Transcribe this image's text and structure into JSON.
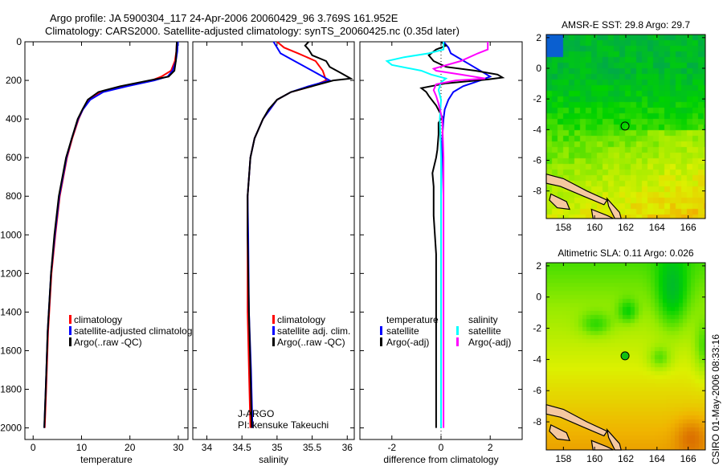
{
  "figure": {
    "title_line1": "Argo profile: JA 5900304_117 24-Apr-2006 20060429_96 3.769S 161.952E",
    "title_line2": "Climatology: CARS2000. Satellite-adjusted climatology: synTS_20060425.nc (0.35d later)",
    "pi_line1": "J-ARGO",
    "pi_line2": "PI: kensuke Takeuchi",
    "timestamp": "CSIRO 01-May-2006 08:33:16"
  },
  "colors": {
    "red": "#ff0000",
    "blue": "#0000ff",
    "black": "#000000",
    "cyan": "#00ffff",
    "magenta": "#ff00ff"
  },
  "chart_data": [
    {
      "type": "line",
      "id": "temperature",
      "xlabel": "temperature",
      "ylabel": "",
      "xlim": [
        -1.7,
        32
      ],
      "ylim": [
        2060,
        0
      ],
      "xticks": [
        "0",
        "10",
        "20",
        "30"
      ],
      "xtick_values": [
        0,
        10,
        20,
        30
      ],
      "yticks": [
        "0",
        "200",
        "400",
        "600",
        "800",
        "1000",
        "1200",
        "1400",
        "1600",
        "1800",
        "2000"
      ],
      "ytick_values": [
        0,
        200,
        400,
        600,
        800,
        1000,
        1200,
        1400,
        1600,
        1800,
        2000
      ],
      "legend": [
        "climatology",
        "satellite-adjusted climatology",
        "Argo(..raw -QC)"
      ],
      "series": [
        {
          "name": "climatology",
          "color": "#ff0000",
          "depth": [
            0,
            50,
            100,
            150,
            180,
            200,
            230,
            260,
            300,
            350,
            400,
            500,
            600,
            800,
            1000,
            1200,
            1500,
            1800,
            2000
          ],
          "values": [
            29.7,
            29.6,
            29.3,
            28.5,
            26.5,
            24.5,
            19,
            14,
            11.6,
            10.3,
            9.4,
            8.1,
            7,
            5.5,
            4.6,
            3.8,
            3.1,
            2.7,
            2.4
          ]
        },
        {
          "name": "satellite-adjusted climatology",
          "color": "#0000ff",
          "depth": [
            0,
            50,
            100,
            150,
            180,
            200,
            230,
            260,
            300,
            350,
            400,
            500,
            600,
            800,
            1000,
            1200,
            1500,
            1800,
            2000
          ],
          "values": [
            29.9,
            29.8,
            29.5,
            28.8,
            27.8,
            25,
            19.5,
            14.5,
            11.8,
            10.3,
            9.3,
            8,
            6.9,
            5.4,
            4.5,
            3.7,
            3,
            2.6,
            2.3
          ]
        },
        {
          "name": "Argo(..raw -QC)",
          "color": "#000000",
          "depth": [
            0,
            50,
            100,
            150,
            180,
            200,
            230,
            260,
            300,
            350,
            400,
            500,
            600,
            800,
            1000,
            1200,
            1500,
            1800,
            2000
          ],
          "values": [
            29.7,
            29.6,
            29.5,
            29.2,
            28,
            24,
            18,
            13.5,
            11.3,
            10.2,
            9.2,
            8,
            6.8,
            5.3,
            4.4,
            3.7,
            3,
            2.6,
            2.3
          ]
        }
      ]
    },
    {
      "type": "line",
      "id": "salinity",
      "xlabel": "salinity",
      "xlim": [
        33.8,
        36.1
      ],
      "ylim": [
        2060,
        0
      ],
      "xticks": [
        "34",
        "34.5",
        "35",
        "35.5",
        "36"
      ],
      "xtick_values": [
        34,
        34.5,
        35,
        35.5,
        36
      ],
      "legend": [
        "climatology",
        "satellite adj. clim.",
        "Argo(..raw -QC)"
      ],
      "series": [
        {
          "name": "climatology",
          "color": "#ff0000",
          "depth": [
            0,
            30,
            60,
            100,
            150,
            200,
            230,
            260,
            300,
            350,
            400,
            500,
            600,
            800,
            1000,
            1400,
            1700,
            2000
          ],
          "values": [
            35.0,
            35.1,
            35.3,
            35.55,
            35.65,
            35.7,
            35.5,
            35.2,
            35.0,
            34.9,
            34.8,
            34.68,
            34.62,
            34.58,
            34.58,
            34.58,
            34.6,
            34.62
          ]
        },
        {
          "name": "satellite adj. clim.",
          "color": "#0000ff",
          "depth": [
            0,
            30,
            60,
            100,
            150,
            200,
            230,
            260,
            300,
            350,
            400,
            500,
            600,
            800,
            1000,
            1400,
            1700,
            2000
          ],
          "values": [
            34.95,
            35.0,
            35.05,
            35.25,
            35.5,
            35.75,
            35.45,
            35.2,
            35.0,
            34.9,
            34.8,
            34.68,
            34.62,
            34.58,
            34.59,
            34.6,
            34.63,
            34.65
          ]
        },
        {
          "name": "Argo(..raw -QC)",
          "color": "#000000",
          "depth": [
            0,
            20,
            40,
            70,
            100,
            130,
            160,
            190,
            200,
            230,
            260,
            300,
            350,
            400,
            500,
            600,
            800,
            1000,
            1400,
            1700,
            2000
          ],
          "values": [
            35.45,
            35.4,
            35.45,
            35.5,
            35.7,
            35.75,
            35.9,
            36.05,
            35.8,
            35.5,
            35.2,
            35.0,
            34.88,
            34.8,
            34.68,
            34.62,
            34.58,
            34.58,
            34.6,
            34.62,
            34.64
          ]
        }
      ]
    },
    {
      "type": "line",
      "id": "difference",
      "xlabel": "difference from climatology",
      "xlim": [
        -3.3,
        3.3
      ],
      "ylim": [
        2060,
        0
      ],
      "xticks": [
        "-2",
        "0",
        "2"
      ],
      "xtick_values": [
        -2,
        0,
        2
      ],
      "legend_temperature_header": "temperature",
      "legend_salinity_header": "salinity",
      "legend": [
        "satellite",
        "Argo(-adj)",
        "satellite",
        "Argo(-adj)"
      ],
      "series": [
        {
          "name": "temperature satellite",
          "color": "#0000ff",
          "depth": [
            0,
            30,
            60,
            120,
            180,
            200,
            230,
            260,
            300,
            350,
            400,
            500,
            800,
            1200,
            2000
          ],
          "values": [
            0.1,
            0.3,
            0.4,
            1.2,
            2.0,
            1.6,
            0.9,
            0.5,
            0.3,
            0.15,
            0.1,
            0.05,
            0.0,
            0.0,
            0.0
          ]
        },
        {
          "name": "temperature Argo(-adj)",
          "color": "#000000",
          "depth": [
            0,
            20,
            40,
            70,
            100,
            130,
            150,
            170,
            185,
            195,
            215,
            240,
            260,
            280,
            330,
            390,
            420,
            480,
            560,
            600,
            680,
            750,
            900,
            1100,
            1500,
            2000
          ],
          "values": [
            0.0,
            0.2,
            -0.2,
            -0.5,
            -0.3,
            0.2,
            1.4,
            2.3,
            2.5,
            1.9,
            0.2,
            -0.8,
            -0.6,
            -0.5,
            -0.2,
            0.05,
            -0.1,
            -0.1,
            -0.15,
            -0.2,
            -0.35,
            -0.3,
            -0.3,
            -0.2,
            -0.2,
            -0.2
          ]
        },
        {
          "name": "salinity satellite",
          "color": "#00ffff",
          "depth": [
            0,
            40,
            60,
            80,
            100,
            120,
            150,
            170,
            190,
            210,
            250,
            300,
            400,
            600,
            1000,
            1500,
            2000
          ],
          "values": [
            0.1,
            0.1,
            -0.5,
            -1.5,
            -2.2,
            -2.0,
            -0.8,
            -0.4,
            0.2,
            0.0,
            -0.1,
            0.0,
            -0.05,
            0.0,
            0.0,
            0.0,
            0.0
          ]
        },
        {
          "name": "salinity Argo(-adj)",
          "color": "#ff00ff",
          "depth": [
            0,
            40,
            60,
            100,
            140,
            150,
            170,
            190,
            200,
            220,
            250,
            280,
            320,
            400,
            600,
            1000,
            1500,
            2000
          ],
          "values": [
            1.9,
            1.9,
            1.5,
            0.8,
            -0.3,
            -0.2,
            0.8,
            1.8,
            0.6,
            -0.2,
            -0.3,
            -0.2,
            -0.1,
            0.05,
            0.1,
            0.1,
            0.1,
            0.1
          ]
        }
      ]
    },
    {
      "type": "heatmap",
      "id": "sst-map",
      "title": "AMSR-E SST: 29.8 Argo: 29.7",
      "xticks": [
        "158",
        "160",
        "162",
        "164",
        "166"
      ],
      "xtick_values": [
        158,
        160,
        162,
        164,
        166
      ],
      "yticks": [
        "2",
        "0",
        "-2",
        "-4",
        "-6",
        "-8"
      ],
      "ytick_values": [
        2,
        0,
        -2,
        -4,
        -6,
        -8
      ],
      "xlim": [
        156.9,
        167.1
      ],
      "ylim": [
        -9.8,
        2.2
      ],
      "argo_position": {
        "lon": 161.952,
        "lat": -3.769
      }
    },
    {
      "type": "heatmap",
      "id": "sla-map",
      "title": "Altimetric SLA: 0.11 Argo: 0.026",
      "xticks": [
        "158",
        "160",
        "162",
        "164",
        "166"
      ],
      "xtick_values": [
        158,
        160,
        162,
        164,
        166
      ],
      "yticks": [
        "2",
        "0",
        "-2",
        "-4",
        "-6",
        "-8"
      ],
      "ytick_values": [
        2,
        0,
        -2,
        -4,
        -6,
        -8
      ],
      "xlim": [
        156.9,
        167.1
      ],
      "ylim": [
        -9.8,
        2.2
      ],
      "argo_position": {
        "lon": 161.952,
        "lat": -3.769
      }
    }
  ]
}
